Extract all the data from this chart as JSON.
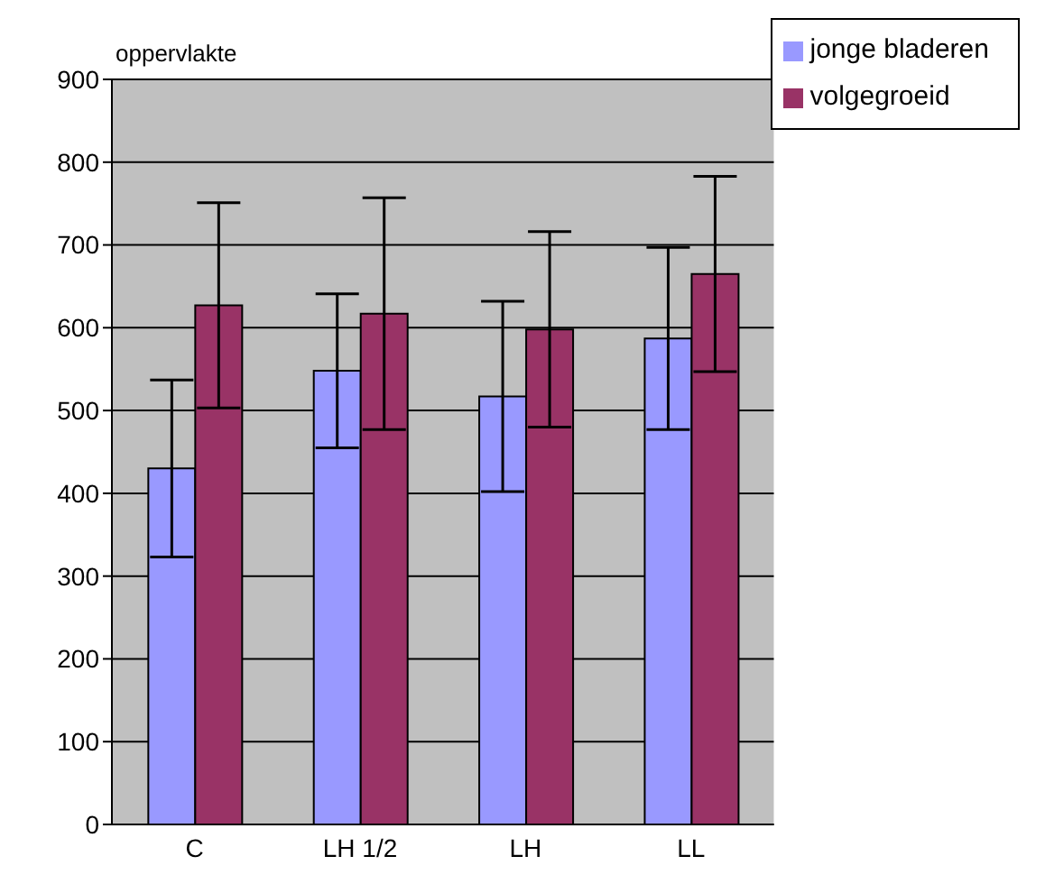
{
  "chart_data": {
    "type": "bar",
    "ylabel": "oppervlakte",
    "categories": [
      "C",
      "LH 1/2",
      "LH",
      "LL"
    ],
    "series": [
      {
        "name": "jonge bladeren",
        "color": "#9999ff",
        "values": [
          430,
          548,
          517,
          587
        ],
        "errors": [
          107,
          93,
          115,
          110
        ]
      },
      {
        "name": "volgegroeid",
        "color": "#993366",
        "values": [
          627,
          617,
          598,
          665
        ],
        "errors": [
          124,
          140,
          118,
          118
        ]
      }
    ],
    "ylim": [
      0,
      900
    ],
    "yticks": [
      0,
      100,
      200,
      300,
      400,
      500,
      600,
      700,
      800,
      900
    ],
    "grid": "y",
    "legend": "top right"
  }
}
